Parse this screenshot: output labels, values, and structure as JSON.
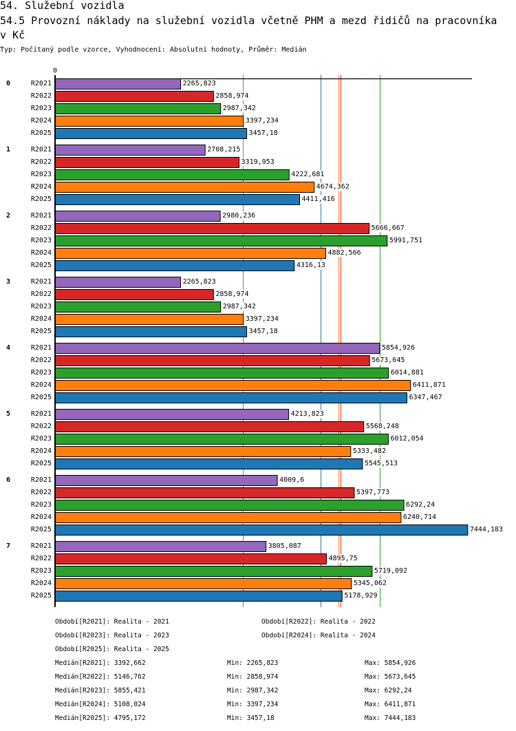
{
  "header": {
    "title": "54. Služební vozidla",
    "subtitle": "54.5 Provozní náklady na služební vozidla včetně PHM a mezd řidičů na pracovníka v Kč",
    "meta": "Typ: Počítaný podle vzorce, Vyhodnocení: Absolutní hodnoty, Průměr: Medián"
  },
  "chart_data": {
    "type": "bar",
    "orientation": "horizontal",
    "title": "54.5 Provozní náklady na služební vozidla včetně PHM a mezd řidičů na pracovníka v Kč",
    "xlabel": "",
    "ylabel": "",
    "xlim": [
      0,
      7520
    ],
    "x_ticks": [
      0
    ],
    "x_tick_labels": [
      "0"
    ],
    "grid": false,
    "legend_position": "bottom",
    "groups": [
      "0",
      "1",
      "2",
      "3",
      "4",
      "5",
      "6",
      "7"
    ],
    "series": [
      {
        "name": "R2021",
        "color": "#9467bd",
        "values": [
          2265.823,
          2708.215,
          2980.236,
          2265.823,
          5854.926,
          4213.823,
          4009.6,
          3805.087
        ],
        "value_labels": [
          "2265,823",
          "2708,215",
          "2980,236",
          "2265,823",
          "5854,926",
          "4213,823",
          "4009,6",
          "3805,087"
        ],
        "median": 3392.662,
        "min": 2265.823,
        "max": 5854.926
      },
      {
        "name": "R2022",
        "color": "#d62728",
        "values": [
          2858.974,
          3319.953,
          5666.667,
          2858.974,
          5673.645,
          5568.248,
          5397.773,
          4895.75
        ],
        "value_labels": [
          "2858,974",
          "3319,953",
          "5666,667",
          "2858,974",
          "5673,645",
          "5568,248",
          "5397,773",
          "4895,75"
        ],
        "median": 5146.762,
        "min": 2858.974,
        "max": 5673.645
      },
      {
        "name": "R2023",
        "color": "#2ca02c",
        "values": [
          2987.342,
          4222.681,
          5991.751,
          2987.342,
          6014.881,
          6012.054,
          6292.24,
          5719.092
        ],
        "value_labels": [
          "2987,342",
          "4222,681",
          "5991,751",
          "2987,342",
          "6014,881",
          "6012,054",
          "6292,24",
          "5719,092"
        ],
        "median": 5855.421,
        "min": 2987.342,
        "max": 6292.24
      },
      {
        "name": "R2024",
        "color": "#ff7f0e",
        "values": [
          3397.234,
          4674.362,
          4882.566,
          3397.234,
          6411.871,
          5333.482,
          6240.714,
          5345.062
        ],
        "value_labels": [
          "3397,234",
          "4674,362",
          "4882,566",
          "3397,234",
          "6411,871",
          "5333,482",
          "6240,714",
          "5345,062"
        ],
        "median": 5108.024,
        "min": 3397.234,
        "max": 6411.871
      },
      {
        "name": "R2025",
        "color": "#1f77b4",
        "values": [
          3457.18,
          4411.416,
          4316.13,
          3457.18,
          6347.467,
          5545.513,
          7444.183,
          5178.929
        ],
        "value_labels": [
          "3457,18",
          "4411,416",
          "4316,13",
          "3457,18",
          "6347,467",
          "5545,513",
          "7444,183",
          "5178,929"
        ],
        "median": 4795.172,
        "min": 3457.18,
        "max": 7444.183
      }
    ]
  },
  "legend": {
    "items": [
      "Období[R2021]: Realita - 2021",
      "Období[R2022]: Realita - 2022",
      "Období[R2023]: Realita - 2023",
      "Období[R2024]: Realita - 2024",
      "Období[R2025]: Realita - 2025"
    ]
  },
  "stats": [
    {
      "median": "Medián[R2021]: 3392,662",
      "min": "Min: 2265,823",
      "max": "Max: 5854,926"
    },
    {
      "median": "Medián[R2022]: 5146,762",
      "min": "Min: 2858,974",
      "max": "Max: 5673,645"
    },
    {
      "median": "Medián[R2023]: 5855,421",
      "min": "Min: 2987,342",
      "max": "Max: 6292,24"
    },
    {
      "median": "Medián[R2024]: 5108,024",
      "min": "Min: 3397,234",
      "max": "Max: 6411,871"
    },
    {
      "median": "Medián[R2025]: 4795,172",
      "min": "Min: 3457,18",
      "max": "Max: 7444,183"
    }
  ]
}
